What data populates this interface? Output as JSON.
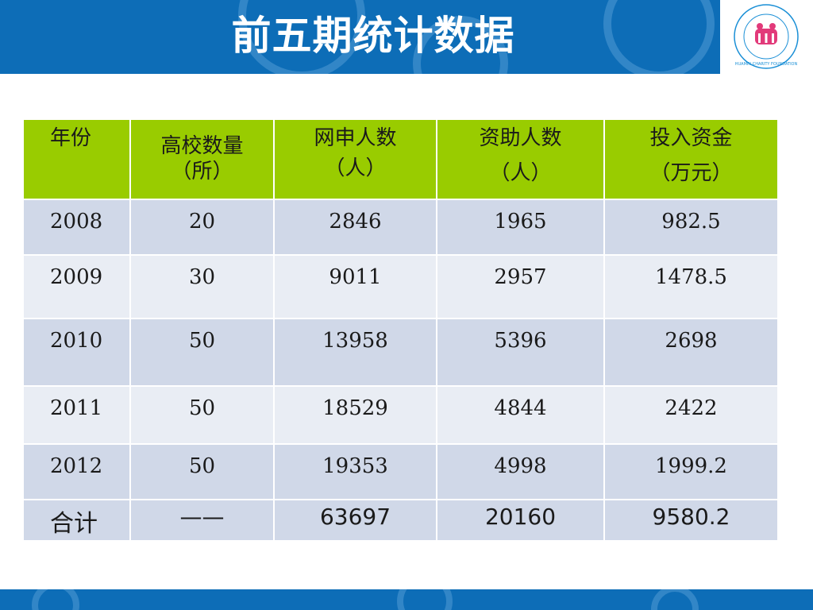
{
  "slide": {
    "title": "前五期统计数据",
    "logo_text": "HUAMIN CHARITY FOUNDATION"
  },
  "table": {
    "headers": [
      {
        "main": "年份",
        "sub": ""
      },
      {
        "main": "高校数量",
        "sub": "（所）"
      },
      {
        "main": "网申人数",
        "sub": "（人）"
      },
      {
        "main": "资助人数",
        "sub": "（人）"
      },
      {
        "main": "投入资金",
        "sub": "（万元）"
      }
    ],
    "rows": [
      [
        "2008",
        "20",
        "2846",
        "1965",
        "982.5"
      ],
      [
        "2009",
        "30",
        "9011",
        "2957",
        "1478.5"
      ],
      [
        "2010",
        "50",
        "13958",
        "5396",
        "2698"
      ],
      [
        "2011",
        "50",
        "18529",
        "4844",
        "2422"
      ],
      [
        "2012",
        "50",
        "19353",
        "4998",
        "1999.2"
      ]
    ],
    "total": [
      "合计",
      "——",
      "63697",
      "20160",
      "9580.2"
    ]
  },
  "colors": {
    "brand_blue": "#0d6db7",
    "header_green": "#99cc00",
    "row_dark": "#d0d8e8",
    "row_light": "#e9edf4"
  }
}
